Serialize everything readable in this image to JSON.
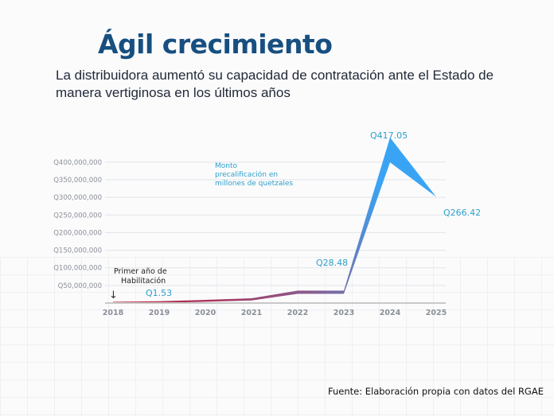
{
  "title": "Ágil crecimiento",
  "subtitle": "La distribuidora aumentó su capacidad de contratación ante el Estado de manera vertiginosa en los últimos años",
  "source": "Fuente: Elaboración propia con datos del RGAE",
  "chart_data": {
    "type": "area",
    "title": "",
    "legend_label": "Monto precalificación en millones de quetzales",
    "annotation": "Primer año de Habilitación",
    "categories": [
      "2018",
      "2019",
      "2020",
      "2021",
      "2022",
      "2023",
      "2024",
      "2025"
    ],
    "values_millions": [
      0,
      1.53,
      5,
      9,
      28.48,
      28.48,
      417.05,
      266.42
    ],
    "data_labels": [
      {
        "year": "2019",
        "text": "Q1.53"
      },
      {
        "year": "2023",
        "text": "Q28.48"
      },
      {
        "year": "2024",
        "text": "Q417.05"
      },
      {
        "year": "2025",
        "text": "Q266.42"
      }
    ],
    "y_ticks": [
      "Q50,000,000",
      "Q100,000,000",
      "Q150,000,000",
      "Q200,000,000",
      "Q250,000,000",
      "Q300,000,000",
      "Q350,000,000",
      "Q400,000,000"
    ],
    "ylim": [
      0,
      400000000
    ],
    "grid": true,
    "colors": {
      "start": "#c4122c",
      "mid": "#8a5c8e",
      "end": "#3aa4f4",
      "labels": "#2f9fc9",
      "grid": "#e2e4e8",
      "axis": "#c9c9c9"
    }
  }
}
